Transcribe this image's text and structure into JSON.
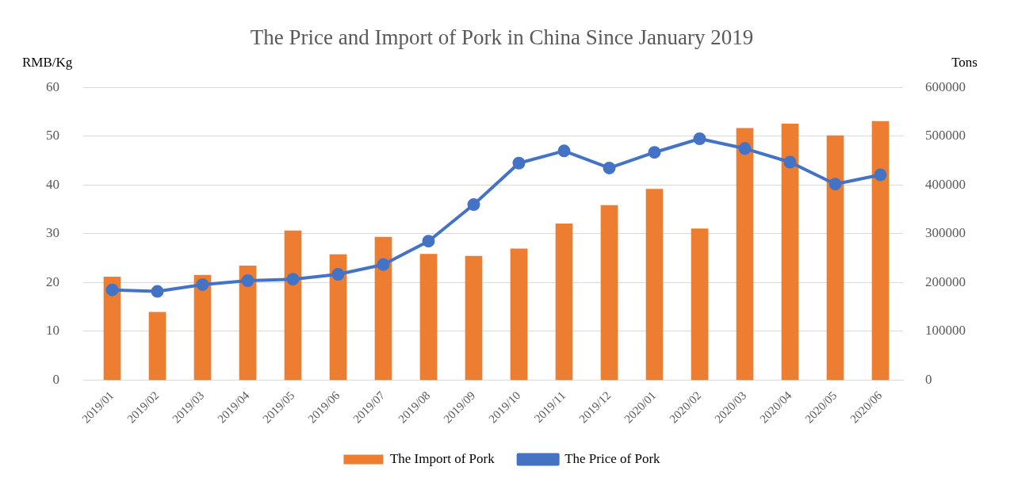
{
  "chart_data": {
    "type": "bar",
    "title": "The Price and Import of Pork in China Since January 2019",
    "ylabel": "RMB/Kg",
    "y2label": "Tons",
    "categories": [
      "2019/01",
      "2019/02",
      "2019/03",
      "2019/04",
      "2019/05",
      "2019/06",
      "2019/07",
      "2019/08",
      "2019/09",
      "2019/10",
      "2019/11",
      "2019/12",
      "2020/01",
      "2020/02",
      "2020/03",
      "2020/04",
      "2020/05",
      "2020/06"
    ],
    "series": [
      {
        "name": "The Import of Pork",
        "axis": "y2",
        "color": "#ed7d31",
        "values": [
          212000,
          140000,
          216000,
          235000,
          307000,
          258000,
          294000,
          259000,
          255000,
          270000,
          321000,
          359000,
          392000,
          311000,
          517000,
          526000,
          502000,
          531000
        ]
      },
      {
        "name": "The Price of Pork",
        "type": "line",
        "axis": "y",
        "color": "#4472c4",
        "marker": "circle",
        "values": [
          18.5,
          18.2,
          19.6,
          20.4,
          20.7,
          21.7,
          23.7,
          28.5,
          36.0,
          44.5,
          47.0,
          43.5,
          46.7,
          49.5,
          47.5,
          44.7,
          40.2,
          42.1
        ]
      }
    ],
    "ylim": [
      0,
      60
    ],
    "yticks": [
      0,
      10,
      20,
      30,
      40,
      50,
      60
    ],
    "y2lim": [
      0,
      600000
    ],
    "y2ticks": [
      0,
      100000,
      200000,
      300000,
      400000,
      500000,
      600000
    ],
    "grid": "y",
    "legend": "bottom"
  }
}
